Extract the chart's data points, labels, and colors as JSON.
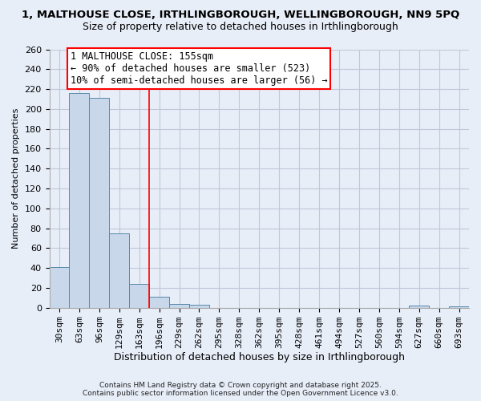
{
  "title": "1, MALTHOUSE CLOSE, IRTHLINGBOROUGH, WELLINGBOROUGH, NN9 5PQ",
  "subtitle": "Size of property relative to detached houses in Irthlingborough",
  "xlabel": "Distribution of detached houses by size in Irthlingborough",
  "ylabel": "Number of detached properties",
  "bar_values": [
    41,
    216,
    211,
    75,
    24,
    11,
    4,
    3,
    0,
    0,
    0,
    0,
    0,
    0,
    0,
    0,
    0,
    0,
    2,
    0,
    1
  ],
  "bin_labels": [
    "30sqm",
    "63sqm",
    "96sqm",
    "129sqm",
    "163sqm",
    "196sqm",
    "229sqm",
    "262sqm",
    "295sqm",
    "328sqm",
    "362sqm",
    "395sqm",
    "428sqm",
    "461sqm",
    "494sqm",
    "527sqm",
    "560sqm",
    "594sqm",
    "627sqm",
    "660sqm",
    "693sqm"
  ],
  "bar_color": "#c8d8ea",
  "bar_edge_color": "#5588aa",
  "vline_x": 4.5,
  "vline_color": "red",
  "annotation_title": "1 MALTHOUSE CLOSE: 155sqm",
  "annotation_line1": "← 90% of detached houses are smaller (523)",
  "annotation_line2": "10% of semi-detached houses are larger (56) →",
  "annotation_box_facecolor": "white",
  "annotation_box_edgecolor": "red",
  "ylim": [
    0,
    260
  ],
  "yticks": [
    0,
    20,
    40,
    60,
    80,
    100,
    120,
    140,
    160,
    180,
    200,
    220,
    240,
    260
  ],
  "footer1": "Contains HM Land Registry data © Crown copyright and database right 2025.",
  "footer2": "Contains public sector information licensed under the Open Government Licence v3.0.",
  "bg_color": "#e8eef8",
  "plot_bg_color": "#e8eef8",
  "grid_color": "#c0c8d8",
  "title_fontsize": 9.5,
  "subtitle_fontsize": 9,
  "xlabel_fontsize": 9,
  "ylabel_fontsize": 8,
  "tick_fontsize": 8,
  "annotation_fontsize": 8.5
}
